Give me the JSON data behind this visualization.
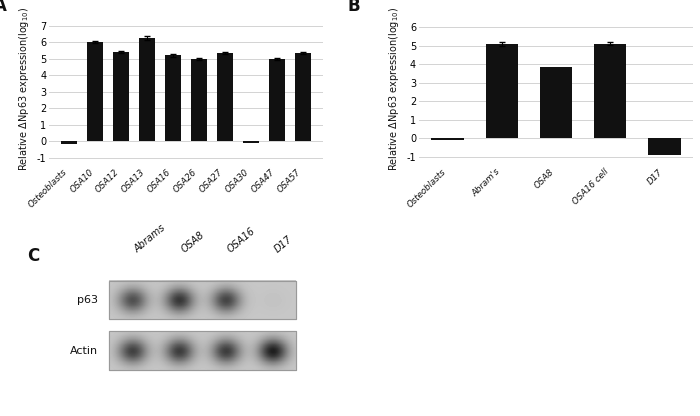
{
  "panel_A": {
    "categories": [
      "Osteoblasts",
      "OSA10",
      "OSA12",
      "OSA13",
      "OSA16",
      "OSA26",
      "OSA27",
      "OSA30",
      "OSA47",
      "OSA57"
    ],
    "values": [
      -0.15,
      6.0,
      5.4,
      6.25,
      5.2,
      5.0,
      5.35,
      -0.1,
      5.0,
      5.35
    ],
    "errors": [
      0.0,
      0.08,
      0.07,
      0.12,
      0.08,
      0.06,
      0.07,
      0.0,
      0.06,
      0.07
    ],
    "ylim": [
      -1.5,
      7.8
    ],
    "yticks": [
      -1,
      0,
      1,
      2,
      3,
      4,
      5,
      6,
      7
    ],
    "bar_color": "#111111",
    "label": "A"
  },
  "panel_B": {
    "categories": [
      "Osteoblasts",
      "Abram's",
      "OSA8",
      "OSA16 cell",
      "D17"
    ],
    "values": [
      -0.1,
      5.1,
      3.85,
      5.1,
      -0.9
    ],
    "errors": [
      0.0,
      0.1,
      0.0,
      0.08,
      0.0
    ],
    "ylim": [
      -1.5,
      6.8
    ],
    "yticks": [
      -1,
      0,
      1,
      2,
      3,
      4,
      5,
      6
    ],
    "bar_color": "#111111",
    "label": "B"
  },
  "panel_C": {
    "label": "C",
    "lane_labels": [
      "Abrams",
      "OSA8",
      "OSA16",
      "D17"
    ],
    "p63_intensities": [
      0.62,
      0.75,
      0.68,
      0.02
    ],
    "actin_intensities": [
      0.7,
      0.72,
      0.72,
      0.88
    ],
    "box_bg": "#c8c8c8",
    "box_edge": "#999999"
  },
  "figure_bg": "#ffffff",
  "font_color": "#111111",
  "grid_color": "#cccccc",
  "ylabel": "Relative ΔNp63 expression(log$_{10}$)"
}
